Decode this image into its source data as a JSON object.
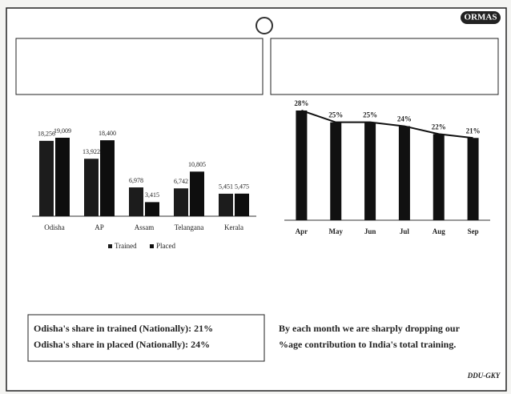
{
  "chart_data": [
    {
      "type": "bar",
      "categories": [
        "Odisha",
        "AP",
        "Assam",
        "Telangana",
        "Kerala"
      ],
      "series": [
        {
          "name": "Trained",
          "color": "#1c1c1c",
          "values": [
            18256,
            13922,
            6978,
            6742,
            5451
          ],
          "value_labels": [
            "18,256",
            "13,922",
            "6,978",
            "6,742",
            "5,451"
          ]
        },
        {
          "name": "Placed",
          "color": "#0e0e0e",
          "values": [
            19009,
            18400,
            3415,
            10805,
            5475
          ],
          "value_labels": [
            "19,009",
            "18,400",
            "3,415",
            "10,805",
            "5,475"
          ]
        }
      ],
      "legend": "bottom"
    },
    {
      "type": "bar",
      "categories": [
        "Apr",
        "May",
        "Jun",
        "Jul",
        "Aug",
        "Sep"
      ],
      "values": [
        28,
        25,
        25,
        24,
        22,
        21
      ],
      "value_labels": [
        "28%",
        "25%",
        "25%",
        "24%",
        "22%",
        "21%"
      ],
      "color": "#111111",
      "line_overlay": true
    }
  ],
  "notes": {
    "left_box": [
      "Odisha's share in trained (Nationally): 21%",
      "Odisha's share in placed (Nationally): 24%"
    ],
    "right_text": [
      "By each month we are sharply dropping our",
      "%age contribution to India's total training."
    ]
  },
  "logos": {
    "ormas": "ORMAS",
    "ddu": "DDU-GKY"
  }
}
